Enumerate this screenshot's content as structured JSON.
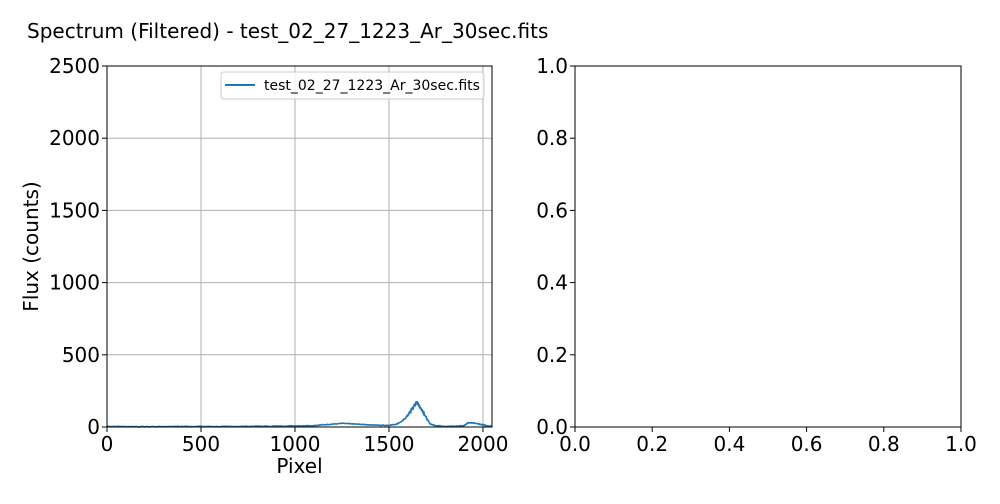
{
  "figure": {
    "title": "Spectrum (Filtered) - test_02_27_1223_Ar_30sec.fits"
  },
  "chart_data": [
    {
      "type": "line",
      "title": "",
      "xlabel": "Pixel",
      "ylabel": "Flux (counts)",
      "xlim": [
        0,
        2048
      ],
      "ylim": [
        0,
        2500
      ],
      "xticks": [
        0,
        500,
        1000,
        1500,
        2000
      ],
      "yticks": [
        0,
        500,
        1000,
        1500,
        2000,
        2500
      ],
      "grid": true,
      "legend": "top-right",
      "series": [
        {
          "name": "test_02_27_1223_Ar_30sec.fits",
          "color": "#1f77b4",
          "x": [
            0,
            100,
            200,
            300,
            400,
            500,
            600,
            700,
            800,
            900,
            1000,
            1100,
            1150,
            1200,
            1250,
            1300,
            1350,
            1400,
            1450,
            1500,
            1540,
            1570,
            1600,
            1620,
            1640,
            1650,
            1660,
            1680,
            1700,
            1720,
            1750,
            1800,
            1850,
            1900,
            1920,
            1950,
            1980,
            2000,
            2020,
            2048
          ],
          "y": [
            5,
            3,
            2,
            3,
            4,
            4,
            3,
            4,
            5,
            6,
            8,
            10,
            15,
            20,
            25,
            22,
            18,
            15,
            12,
            12,
            20,
            40,
            80,
            120,
            160,
            170,
            150,
            110,
            60,
            20,
            10,
            5,
            5,
            10,
            30,
            28,
            20,
            15,
            8,
            5
          ]
        }
      ]
    },
    {
      "type": "line",
      "title": "",
      "xlabel": "",
      "ylabel": "",
      "xlim": [
        0,
        1
      ],
      "ylim": [
        0,
        1
      ],
      "xticks": [
        0,
        0.2,
        0.4,
        0.6,
        0.8,
        1.0
      ],
      "yticks": [
        0,
        0.2,
        0.4,
        0.6,
        0.8,
        1.0
      ],
      "xtick_labels": [
        "0.0",
        "0.2",
        "0.4",
        "0.6",
        "0.8",
        "1.0"
      ],
      "ytick_labels": [
        "0.0",
        "0.2",
        "0.4",
        "0.6",
        "0.8",
        "1.0"
      ],
      "grid": false,
      "series": []
    }
  ]
}
